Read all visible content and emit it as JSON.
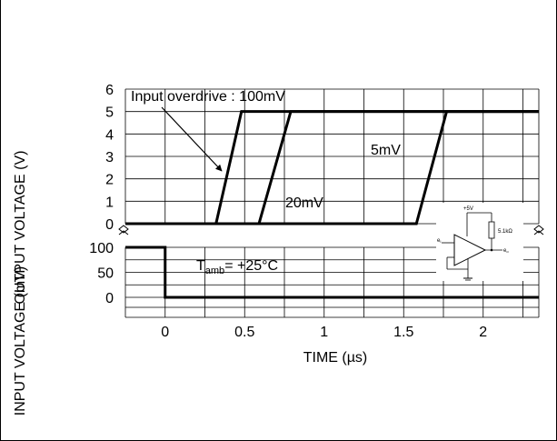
{
  "chart_data": {
    "type": "line",
    "xlabel": "TIME (µs)",
    "x_ticks": [
      "0",
      "0.5",
      "1",
      "1.5",
      "2"
    ],
    "xlim": [
      -0.25,
      2.35
    ],
    "grid": true,
    "top_panel": {
      "ylabel": "OUTPUT VOLTAGE (V)",
      "y_ticks": [
        "0",
        "1",
        "2",
        "3",
        "4",
        "5",
        "6"
      ],
      "ylim": [
        0,
        6
      ],
      "series": [
        {
          "name": "100mV",
          "x": [
            -0.25,
            0.32,
            0.48,
            2.35
          ],
          "y": [
            0,
            0,
            5,
            5
          ]
        },
        {
          "name": "20mV",
          "x": [
            -0.25,
            0.59,
            0.79,
            2.35
          ],
          "y": [
            0,
            0,
            5,
            5
          ]
        },
        {
          "name": "5mV",
          "x": [
            -0.25,
            1.58,
            1.77,
            2.35
          ],
          "y": [
            0,
            0,
            5,
            5
          ]
        }
      ]
    },
    "bottom_panel": {
      "ylabel": "INPUT VOLTAGE (mV)",
      "y_ticks": [
        "0",
        "50",
        "100"
      ],
      "ylim": [
        -40,
        100
      ],
      "series": [
        {
          "name": "input",
          "x": [
            -0.25,
            0.0,
            0.0,
            2.35
          ],
          "y": [
            100,
            100,
            0,
            0
          ]
        }
      ]
    },
    "annotations": {
      "overdrive": "Input overdrive : 100mV",
      "label_5mv": "5mV",
      "label_20mv": "20mV",
      "tamb_main": "T",
      "tamb_sub": "amb",
      "tamb_rest": "= +25°C"
    },
    "inset": {
      "supply": "+5V",
      "resistor": "5.1kΩ",
      "input": "e",
      "input_sub": "I",
      "output": "e",
      "output_sub": "o"
    }
  }
}
